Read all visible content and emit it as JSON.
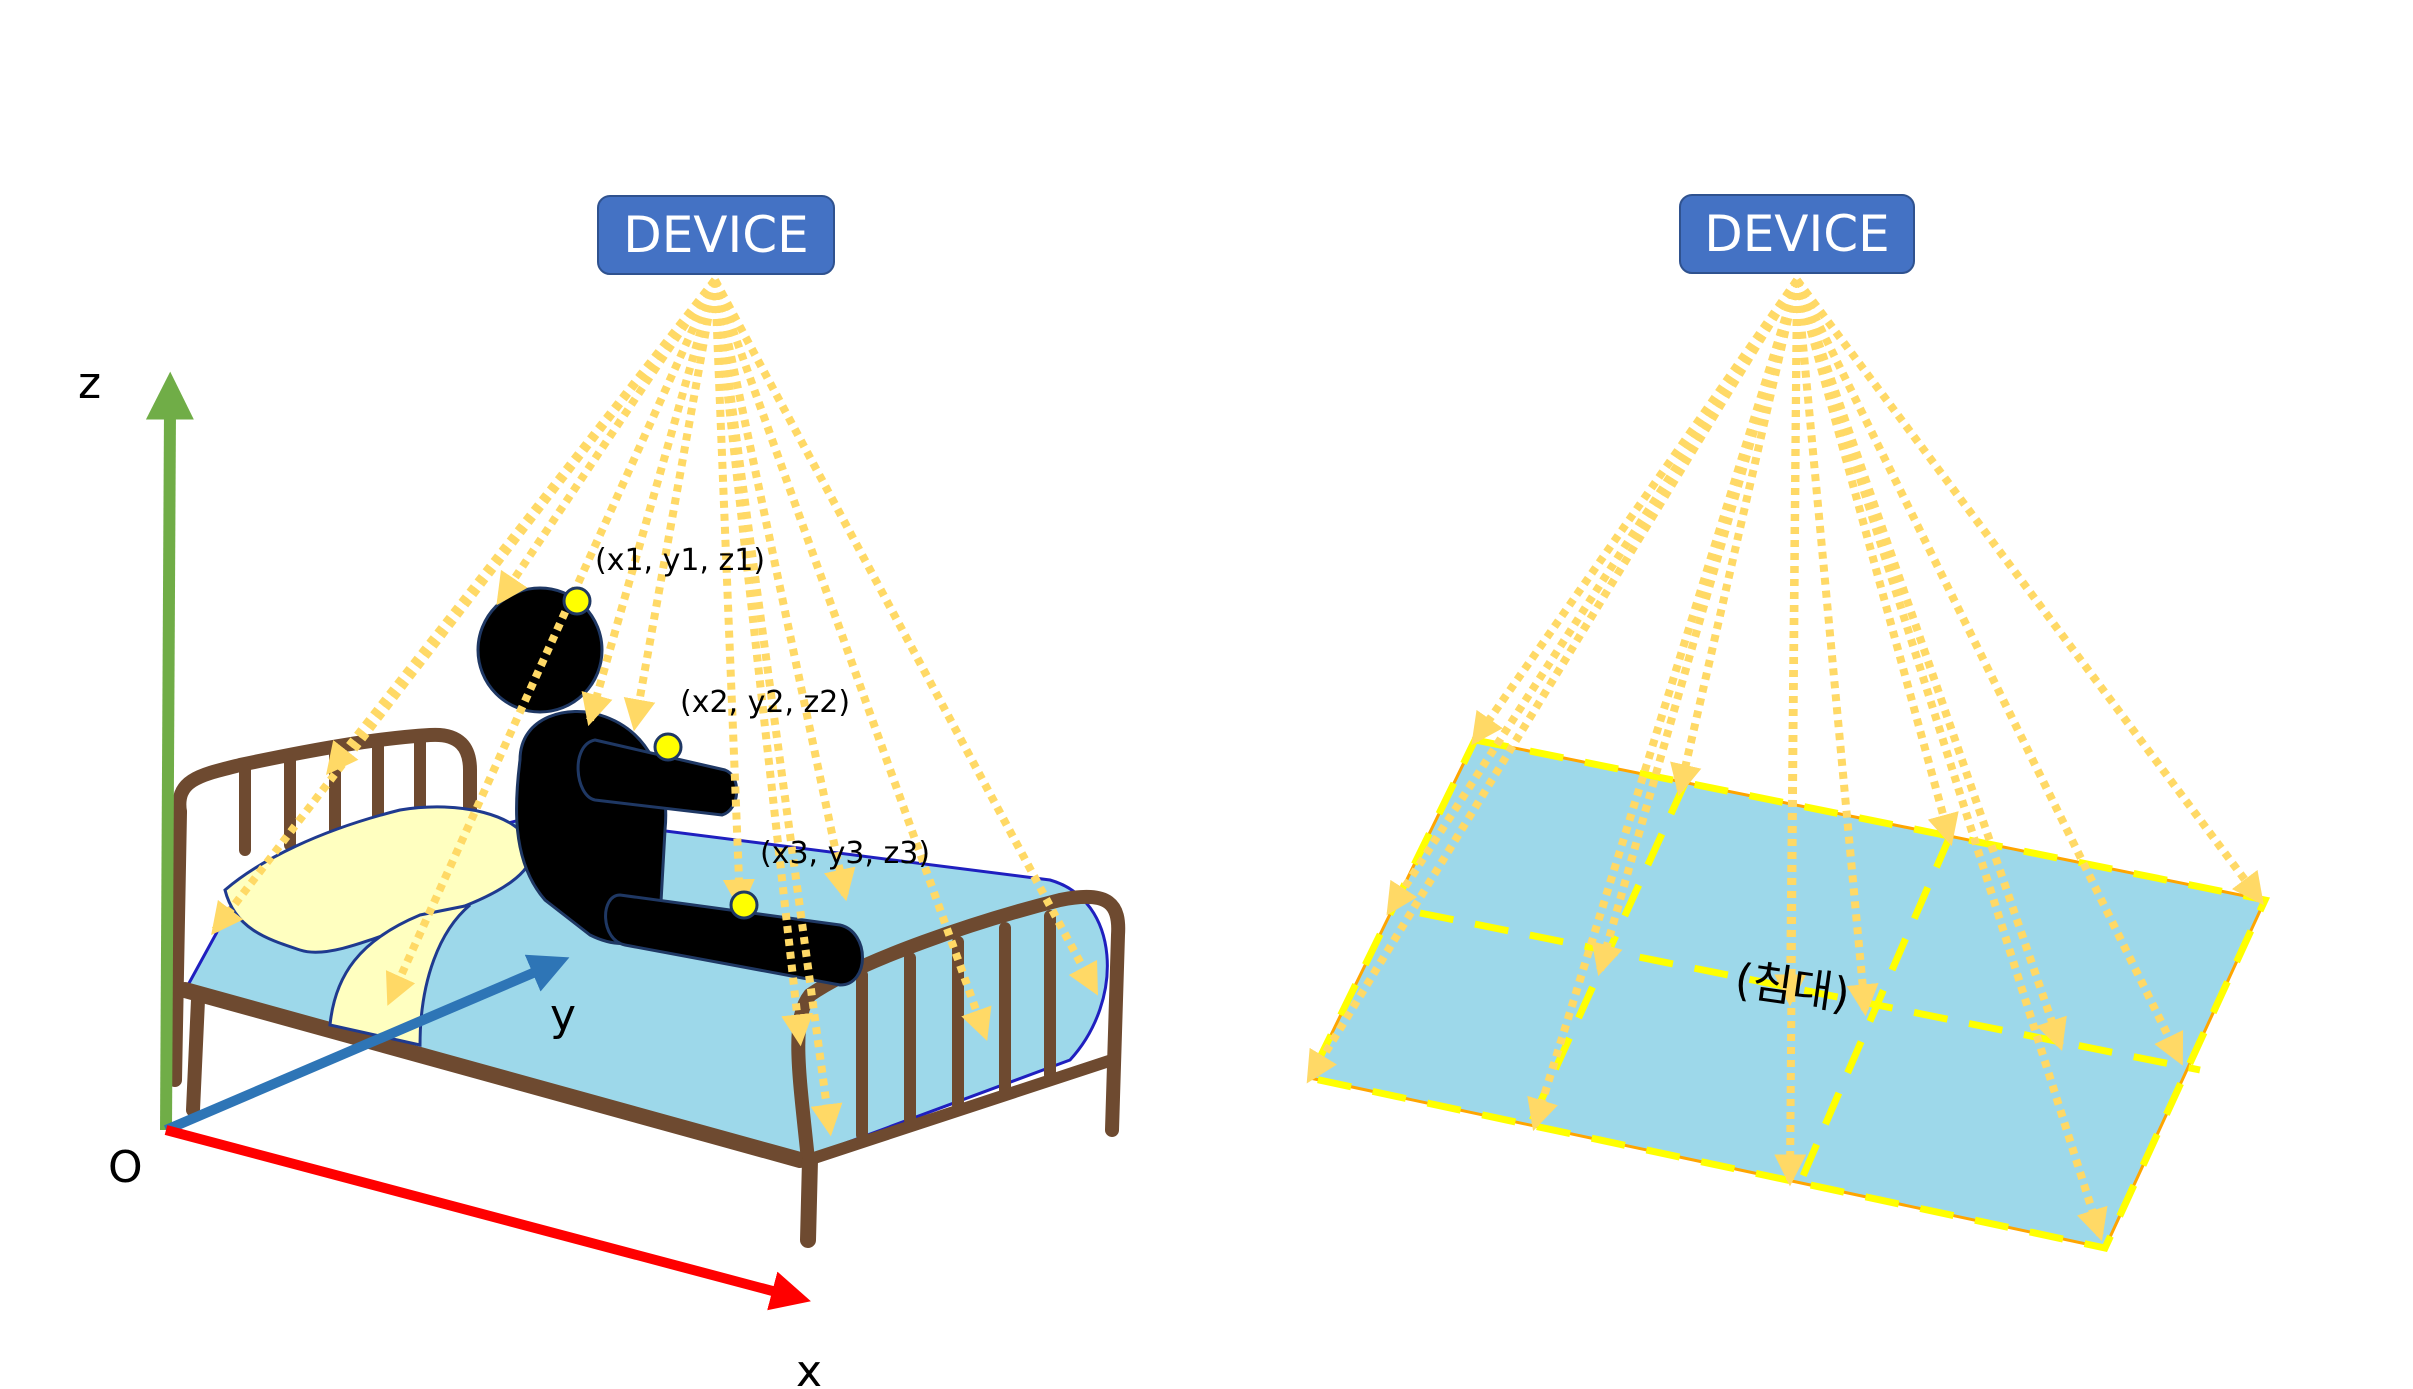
{
  "left_panel": {
    "device_label": "DEVICE",
    "axes": {
      "z_label": "z",
      "y_label": "y",
      "x_label": "x",
      "origin_label": "O"
    },
    "points": [
      {
        "label": "(x1, y1, z1)"
      },
      {
        "label": "(x2, y2, z2)"
      },
      {
        "label": "(x3, y3, z3)"
      }
    ]
  },
  "right_panel": {
    "device_label": "DEVICE",
    "area_label": "(침대)"
  },
  "colors": {
    "device": "#4472c4",
    "beam": "#ffd966",
    "sheet": "#9dd8ea",
    "grid": "#ffff00",
    "frame": "#6e4a30",
    "z_axis": "#70ad47",
    "y_axis": "#2e75b6",
    "x_axis": "#ff0000",
    "pillow": "#ffffc0",
    "person": "#000000"
  }
}
